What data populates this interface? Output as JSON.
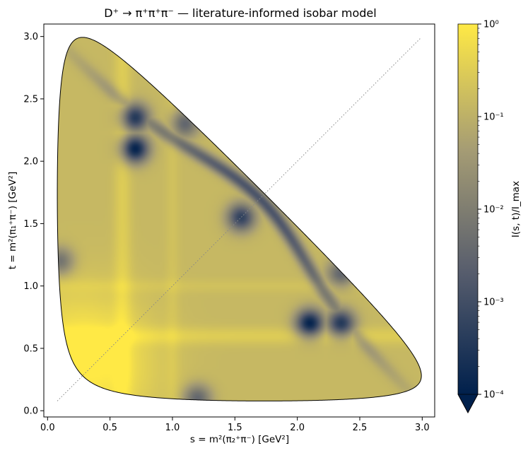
{
  "chart_data": {
    "type": "heatmap",
    "title": "D⁺ → π⁺π⁺π⁻ — literature-informed isobar model",
    "xlabel": "s = m²(π₂⁺π⁻) [GeV²]",
    "ylabel": "t = m²(π₁⁺π⁻) [GeV²]",
    "colorbar_label": "I(s, t)/I_max",
    "xlim": [
      -0.03,
      3.1
    ],
    "ylim": [
      -0.05,
      3.1
    ],
    "x_ticks": [
      0.0,
      0.5,
      1.0,
      1.5,
      2.0,
      2.5,
      3.0
    ],
    "x_tick_labels": [
      "0.0",
      "0.5",
      "1.0",
      "1.5",
      "2.0",
      "2.5",
      "3.0"
    ],
    "y_ticks": [
      0.0,
      0.5,
      1.0,
      1.5,
      2.0,
      2.5,
      3.0
    ],
    "y_tick_labels": [
      "0.0",
      "0.5",
      "1.0",
      "1.5",
      "2.0",
      "2.5",
      "3.0"
    ],
    "color_scale": "log",
    "color_range": [
      0.0001,
      1
    ],
    "colorbar_ticks": [
      0.0001,
      0.001,
      0.01,
      0.1,
      1
    ],
    "colorbar_tick_labels": [
      "10⁻⁴",
      "10⁻³",
      "10⁻²",
      "10⁻¹",
      "10⁰"
    ],
    "colormap": [
      "#00204c",
      "#575d6d",
      "#a59c74",
      "#ffe945"
    ],
    "boundary_masses": {
      "M": 1.8697,
      "m": 0.13957
    },
    "diagonal_line": {
      "from": [
        0.078,
        0.078
      ],
      "to": [
        2.99,
        2.99
      ],
      "style": "dotted",
      "color": "#888888"
    },
    "intensity_features": {
      "bands": [
        {
          "axis": "s",
          "center": 0.6,
          "width": 0.05,
          "level": 0.7
        },
        {
          "axis": "t",
          "center": 0.6,
          "width": 0.05,
          "level": 0.7
        },
        {
          "axis": "s",
          "center": 1.0,
          "width": 0.04,
          "level": 0.2
        },
        {
          "axis": "t",
          "center": 1.0,
          "width": 0.04,
          "level": 0.2
        }
      ],
      "minima": [
        {
          "s": 0.7,
          "t": 2.35,
          "level": 0.0003
        },
        {
          "s": 0.7,
          "t": 2.1,
          "level": 0.0001
        },
        {
          "s": 2.1,
          "t": 0.7,
          "level": 0.0001
        },
        {
          "s": 2.35,
          "t": 0.7,
          "level": 0.0003
        },
        {
          "s": 1.55,
          "t": 1.55,
          "level": 0.0005
        },
        {
          "s": 2.35,
          "t": 1.1,
          "level": 0.003
        },
        {
          "s": 1.1,
          "t": 2.3,
          "level": 0.003
        },
        {
          "s": 1.2,
          "t": 0.1,
          "level": 0.003
        },
        {
          "s": 0.1,
          "t": 1.2,
          "level": 0.005
        }
      ],
      "maximum": {
        "s": 0.25,
        "t": 0.5,
        "level": 1
      }
    }
  }
}
